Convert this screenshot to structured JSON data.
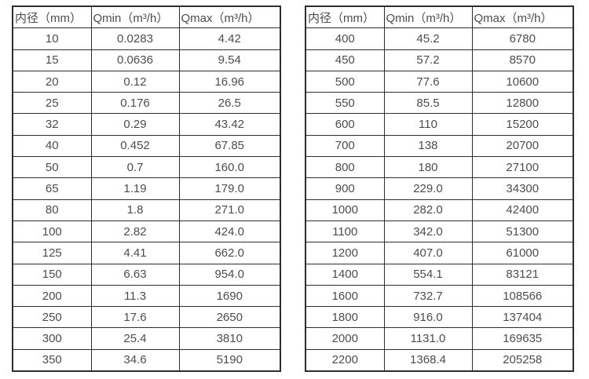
{
  "page": {
    "background_color": "#ffffff",
    "text_color": "#4d4d4d",
    "border_color": "#2e2e2e"
  },
  "tables": [
    {
      "name": "diameter-flow-table-small",
      "headers": [
        "内径（mm）",
        "Qmin（m³/h）",
        "Qmax（m³/h）"
      ],
      "rows": [
        [
          "10",
          "0.0283",
          "4.42"
        ],
        [
          "15",
          "0.0636",
          "9.54"
        ],
        [
          "20",
          "0.12",
          "16.96"
        ],
        [
          "25",
          "0.176",
          "26.5"
        ],
        [
          "32",
          "0.29",
          "43.42"
        ],
        [
          "40",
          "0.452",
          "67.85"
        ],
        [
          "50",
          "0.7",
          "160.0"
        ],
        [
          "65",
          "1.19",
          "179.0"
        ],
        [
          "80",
          "1.8",
          "271.0"
        ],
        [
          "100",
          "2.82",
          "424.0"
        ],
        [
          "125",
          "4.41",
          "662.0"
        ],
        [
          "150",
          "6.63",
          "954.0"
        ],
        [
          "200",
          "11.3",
          "1690"
        ],
        [
          "250",
          "17.6",
          "2650"
        ],
        [
          "300",
          "25.4",
          "3810"
        ],
        [
          "350",
          "34.6",
          "5190"
        ]
      ]
    },
    {
      "name": "diameter-flow-table-large",
      "headers": [
        "内径（mm）",
        "Qmin（m³/h）",
        "Qmax（m³/h）"
      ],
      "rows": [
        [
          "400",
          "45.2",
          "6780"
        ],
        [
          "450",
          "57.2",
          "8570"
        ],
        [
          "500",
          "77.6",
          "10600"
        ],
        [
          "550",
          "85.5",
          "12800"
        ],
        [
          "600",
          "110",
          "15200"
        ],
        [
          "700",
          "138",
          "20700"
        ],
        [
          "800",
          "180",
          "27100"
        ],
        [
          "900",
          "229.0",
          "34300"
        ],
        [
          "1000",
          "282.0",
          "42400"
        ],
        [
          "1100",
          "342.0",
          "51300"
        ],
        [
          "1200",
          "407.0",
          "61000"
        ],
        [
          "1400",
          "554.1",
          "83121"
        ],
        [
          "1600",
          "732.7",
          "108566"
        ],
        [
          "1800",
          "916.0",
          "137404"
        ],
        [
          "2000",
          "1131.0",
          "169635"
        ],
        [
          "2200",
          "1368.4",
          "205258"
        ]
      ]
    }
  ]
}
